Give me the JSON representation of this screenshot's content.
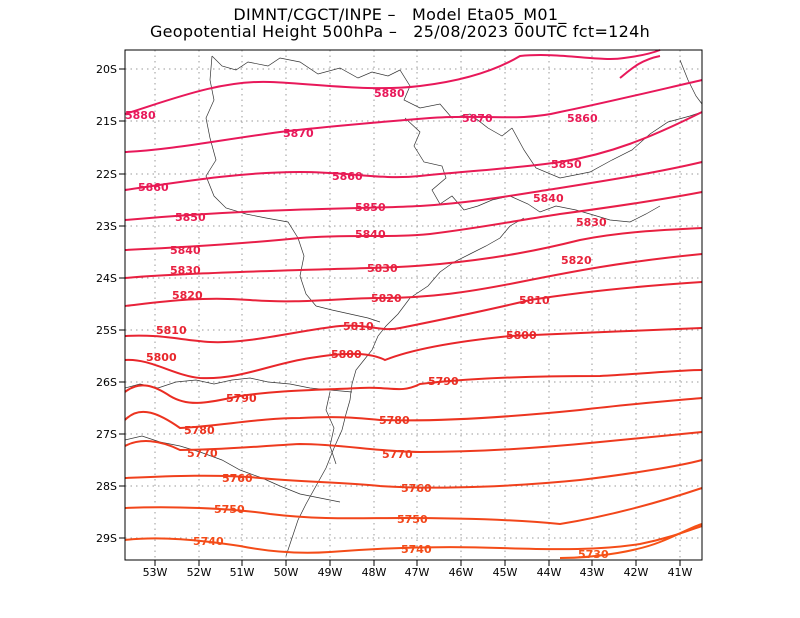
{
  "title": {
    "line1": "DIMNT/CGCT/INPE –   Model Eta05_M01_",
    "line2": "Geopotential Height 500hPa –   25/08/2023 00UTC fct=124h"
  },
  "axes": {
    "lon_labels": [
      "53W",
      "52W",
      "51W",
      "50W",
      "49W",
      "48W",
      "47W",
      "46W",
      "45W",
      "44W",
      "43W",
      "42W",
      "41W"
    ],
    "lat_labels": [
      "20S",
      "21S",
      "22S",
      "23S",
      "24S",
      "25S",
      "26S",
      "27S",
      "28S",
      "29S"
    ]
  },
  "contours": [
    {
      "value": 5880,
      "color": "#e8185a",
      "labels": [
        "5880",
        "5880"
      ]
    },
    {
      "value": 5870,
      "color": "#e8185a",
      "labels": [
        "5870",
        "5870"
      ]
    },
    {
      "value": 5860,
      "color": "#e81a55",
      "labels": [
        "5860",
        "5860",
        "5860"
      ]
    },
    {
      "value": 5850,
      "color": "#e81c50",
      "labels": [
        "5850",
        "5850",
        "5850"
      ]
    },
    {
      "value": 5840,
      "color": "#e81e48",
      "labels": [
        "5840",
        "5840",
        "5840"
      ]
    },
    {
      "value": 5830,
      "color": "#e82040",
      "labels": [
        "5830",
        "5830",
        "5830"
      ]
    },
    {
      "value": 5820,
      "color": "#e8223a",
      "labels": [
        "5820",
        "5820",
        "5820"
      ]
    },
    {
      "value": 5810,
      "color": "#e82432",
      "labels": [
        "5810",
        "5810",
        "5810"
      ]
    },
    {
      "value": 5800,
      "color": "#e8262a",
      "labels": [
        "5800",
        "5800",
        "5800"
      ]
    },
    {
      "value": 5790,
      "color": "#ea2c22",
      "labels": [
        "5790",
        "5790"
      ]
    },
    {
      "value": 5780,
      "color": "#ec3420",
      "labels": [
        "5780",
        "5780"
      ]
    },
    {
      "value": 5770,
      "color": "#ee3a1e",
      "labels": [
        "5770",
        "5770"
      ]
    },
    {
      "value": 5760,
      "color": "#f0401c",
      "labels": [
        "5760",
        "5760"
      ]
    },
    {
      "value": 5750,
      "color": "#f2461a",
      "labels": [
        "5750",
        "5750"
      ]
    },
    {
      "value": 5740,
      "color": "#f44c18",
      "labels": [
        "5740",
        "5740"
      ]
    },
    {
      "value": 5730,
      "color": "#f65216",
      "labels": [
        "5730"
      ]
    }
  ]
}
